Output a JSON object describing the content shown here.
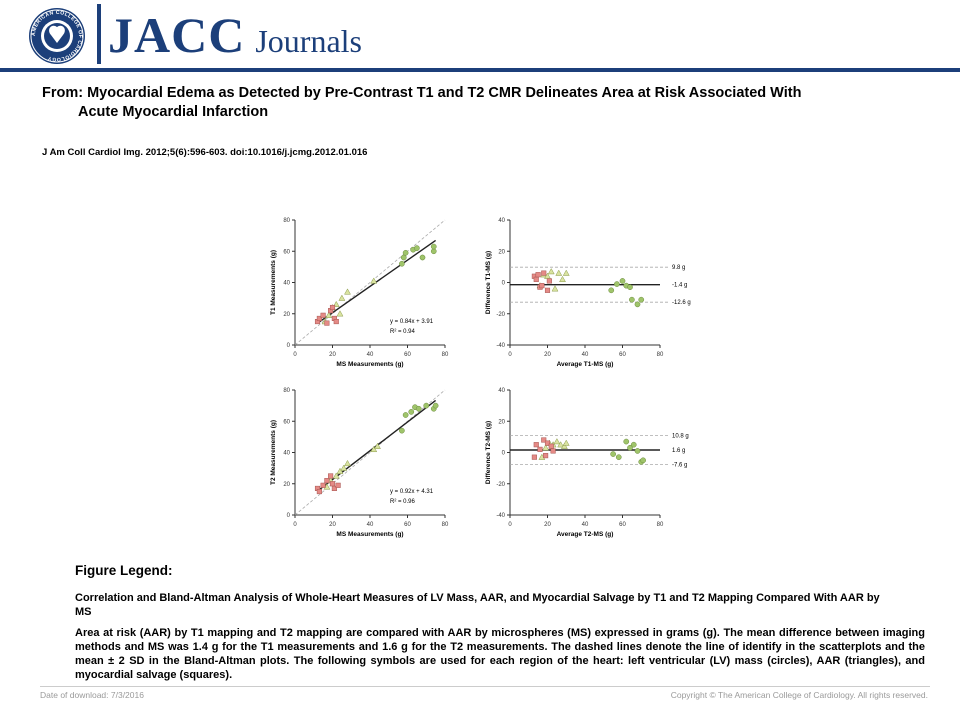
{
  "header": {
    "brand_jacc": "JACC",
    "brand_journals": "Journals",
    "seal_text": "AMERICAN COLLEGE OF CARDIOLOGY"
  },
  "article": {
    "from_line1": "From: Myocardial Edema as Detected by Pre-Contrast T1 and T2 CMR Delineates Area at Risk Associated With",
    "from_line2": "Acute Myocardial Infarction",
    "citation": "J Am Coll Cardiol Img. 2012;5(6):596-603. doi:10.1016/j.jcmg.2012.01.016"
  },
  "colors": {
    "brand_blue": "#1c3f7a",
    "circle_fill": "#9fc46a",
    "triangle_fill": "#d9e3a0",
    "square_fill": "#e58a86"
  },
  "chart_data": [
    {
      "type": "scatter",
      "xlabel": "MS Measurements (g)",
      "ylabel": "T1 Measurements (g)",
      "xlim": [
        0,
        80
      ],
      "ylim": [
        0,
        80
      ],
      "xticks": [
        "0",
        "20",
        "40",
        "60",
        "80"
      ],
      "yticks": [
        "0",
        "20",
        "40",
        "60",
        "80"
      ],
      "equation": "y = 0.84x + 3.91",
      "r2": "R² = 0.94",
      "fit": {
        "slope": 0.84,
        "intercept": 3.91,
        "x_range": [
          12,
          75
        ]
      },
      "series": [
        {
          "marker": "circle",
          "points": [
            [
              57,
              52
            ],
            [
              58,
              56
            ],
            [
              59,
              59
            ],
            [
              63,
              61
            ],
            [
              65,
              62
            ],
            [
              68,
              56
            ],
            [
              74,
              60
            ],
            [
              74,
              63
            ]
          ]
        },
        {
          "marker": "triangle",
          "points": [
            [
              16,
              15
            ],
            [
              18,
              19
            ],
            [
              20,
              24
            ],
            [
              22,
              26
            ],
            [
              24,
              20
            ],
            [
              25,
              30
            ],
            [
              28,
              34
            ],
            [
              42,
              41
            ]
          ]
        },
        {
          "marker": "square",
          "points": [
            [
              12,
              15
            ],
            [
              13,
              17
            ],
            [
              15,
              19
            ],
            [
              17,
              14
            ],
            [
              19,
              22
            ],
            [
              20,
              24
            ],
            [
              21,
              17
            ],
            [
              22,
              15
            ]
          ]
        }
      ]
    },
    {
      "type": "scatter",
      "xlabel": "Average T1-MS (g)",
      "ylabel": "Difference T1-MS (g)",
      "xlim": [
        0,
        80
      ],
      "ylim": [
        -40,
        40
      ],
      "xticks": [
        "0",
        "20",
        "40",
        "60",
        "80"
      ],
      "yticks": [
        "-40",
        "-20",
        "0",
        "20",
        "40"
      ],
      "mean": -1.4,
      "upper": 9.8,
      "lower": -12.6,
      "mean_label": "-1.4 g",
      "upper_label": "9.8 g",
      "lower_label": "-12.6 g",
      "series": [
        {
          "marker": "circle",
          "points": [
            [
              54,
              -5
            ],
            [
              57,
              -1
            ],
            [
              60,
              1
            ],
            [
              62,
              -2
            ],
            [
              64,
              -3
            ],
            [
              65,
              -11
            ],
            [
              68,
              -14
            ],
            [
              70,
              -11
            ]
          ]
        },
        {
          "marker": "triangle",
          "points": [
            [
              16,
              -2
            ],
            [
              18,
              5
            ],
            [
              20,
              4
            ],
            [
              22,
              7
            ],
            [
              24,
              -4
            ],
            [
              26,
              6
            ],
            [
              28,
              2
            ],
            [
              30,
              6
            ]
          ]
        },
        {
          "marker": "square",
          "points": [
            [
              13,
              4
            ],
            [
              14,
              2
            ],
            [
              15,
              5
            ],
            [
              16,
              -3
            ],
            [
              17,
              -2
            ],
            [
              18,
              6
            ],
            [
              20,
              -5
            ],
            [
              21,
              1
            ]
          ]
        }
      ]
    },
    {
      "type": "scatter",
      "xlabel": "MS Measurements (g)",
      "ylabel": "T2 Measurements (g)",
      "xlim": [
        0,
        80
      ],
      "ylim": [
        0,
        80
      ],
      "xticks": [
        "0",
        "20",
        "40",
        "60",
        "80"
      ],
      "yticks": [
        "0",
        "20",
        "40",
        "60",
        "80"
      ],
      "equation": "y = 0.92x + 4.31",
      "r2": "R² = 0.96",
      "fit": {
        "slope": 0.92,
        "intercept": 4.31,
        "x_range": [
          12,
          75
        ]
      },
      "series": [
        {
          "marker": "circle",
          "points": [
            [
              57,
              54
            ],
            [
              59,
              64
            ],
            [
              62,
              66
            ],
            [
              64,
              69
            ],
            [
              66,
              68
            ],
            [
              70,
              70
            ],
            [
              74,
              68
            ],
            [
              75,
              70
            ]
          ]
        },
        {
          "marker": "triangle",
          "points": [
            [
              17,
              18
            ],
            [
              19,
              22
            ],
            [
              22,
              25
            ],
            [
              24,
              28
            ],
            [
              26,
              30
            ],
            [
              28,
              33
            ],
            [
              42,
              42
            ],
            [
              44,
              44
            ]
          ]
        },
        {
          "marker": "square",
          "points": [
            [
              12,
              17
            ],
            [
              13,
              15
            ],
            [
              15,
              19
            ],
            [
              17,
              22
            ],
            [
              19,
              25
            ],
            [
              20,
              20
            ],
            [
              21,
              17
            ],
            [
              23,
              19
            ]
          ]
        }
      ]
    },
    {
      "type": "scatter",
      "xlabel": "Average T2-MS (g)",
      "ylabel": "Difference T2-MS (g)",
      "xlim": [
        0,
        80
      ],
      "ylim": [
        -40,
        40
      ],
      "xticks": [
        "0",
        "20",
        "40",
        "60",
        "80"
      ],
      "yticks": [
        "-40",
        "-20",
        "0",
        "20",
        "40"
      ],
      "mean": 1.6,
      "upper": 10.8,
      "lower": -7.6,
      "mean_label": "1.6 g",
      "upper_label": "10.8 g",
      "lower_label": "-7.6 g",
      "series": [
        {
          "marker": "circle",
          "points": [
            [
              55,
              -1
            ],
            [
              58,
              -3
            ],
            [
              62,
              7
            ],
            [
              64,
              3
            ],
            [
              66,
              5
            ],
            [
              68,
              1
            ],
            [
              70,
              -6
            ],
            [
              71,
              -5
            ]
          ]
        },
        {
          "marker": "triangle",
          "points": [
            [
              17,
              -3
            ],
            [
              19,
              3
            ],
            [
              21,
              6
            ],
            [
              23,
              5
            ],
            [
              25,
              7
            ],
            [
              27,
              5
            ],
            [
              29,
              4
            ],
            [
              30,
              6
            ]
          ]
        },
        {
          "marker": "square",
          "points": [
            [
              13,
              -3
            ],
            [
              14,
              5
            ],
            [
              16,
              2
            ],
            [
              18,
              8
            ],
            [
              19,
              -2
            ],
            [
              20,
              6
            ],
            [
              22,
              4
            ],
            [
              23,
              1
            ]
          ]
        }
      ]
    }
  ],
  "legend": {
    "title": "Figure Legend:",
    "subtitle": "Correlation and Bland-Altman Analysis of Whole-Heart Measures of LV Mass, AAR, and Myocardial Salvage by T1 and T2 Mapping Compared With AAR by MS",
    "body": "Area at risk (AAR) by T1 mapping and T2 mapping are compared with AAR by microspheres (MS) expressed in grams (g). The mean difference between imaging methods and MS was 1.4 g for the T1 measurements and 1.6 g for the T2 measurements. The dashed lines denote the line of identify in the scatterplots and the mean ± 2 SD in the Bland-Altman plots. The following symbols are used for each region of the heart: left ventricular (LV) mass (circles), AAR (triangles), and myocardial salvage (squares)."
  },
  "footer": {
    "date": "Date of download: 7/3/2016",
    "copyright": "Copyright © The American College of Cardiology. All rights reserved."
  }
}
